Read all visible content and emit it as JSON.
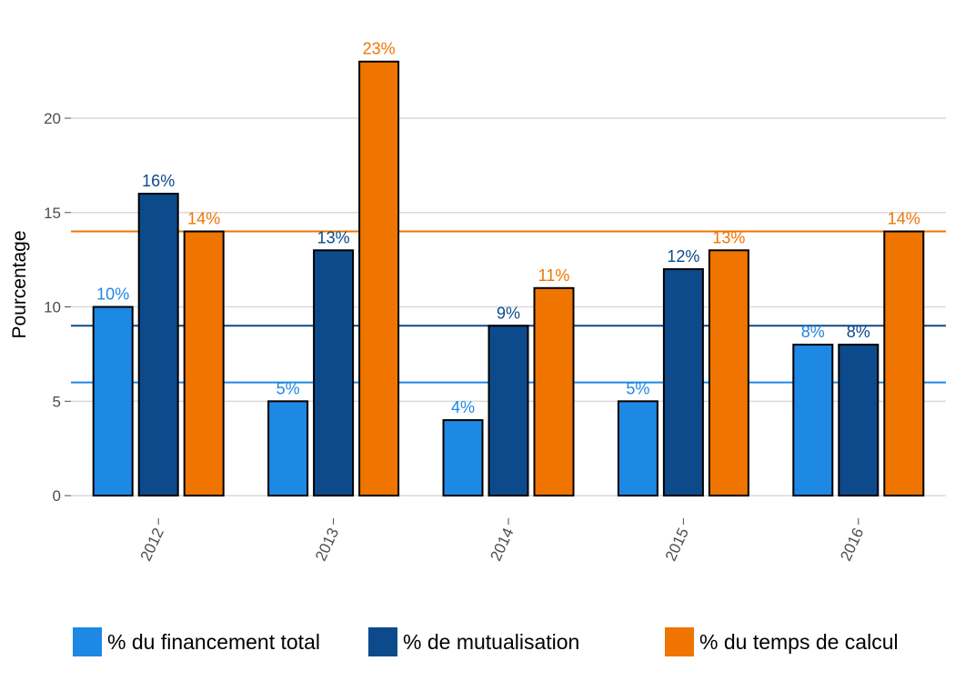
{
  "chart_data": {
    "type": "bar",
    "title": "",
    "xlabel": "",
    "ylabel": "Pourcentage",
    "categories": [
      "2012",
      "2013",
      "2014",
      "2015",
      "2016"
    ],
    "ylim": [
      -1.2,
      25.3
    ],
    "yticks": [
      0,
      5,
      10,
      15,
      20
    ],
    "grid": true,
    "legend_position": "bottom",
    "series": [
      {
        "name": "% du financement total",
        "color": "#1e88e5",
        "values": [
          10,
          5,
          4,
          5,
          8
        ],
        "labels": [
          "10%",
          "5%",
          "4%",
          "5%",
          "8%"
        ]
      },
      {
        "name": "% de mutualisation",
        "color": "#0d4a8c",
        "values": [
          16,
          13,
          9,
          12,
          8
        ],
        "labels": [
          "16%",
          "13%",
          "9%",
          "12%",
          "8%"
        ]
      },
      {
        "name": "% du temps de calcul",
        "color": "#ef7400",
        "values": [
          14,
          23,
          11,
          13,
          14
        ],
        "labels": [
          "14%",
          "23%",
          "11%",
          "13%",
          "14%"
        ]
      }
    ],
    "reference_lines": [
      {
        "value": 6,
        "color": "#1e88e5"
      },
      {
        "value": 9,
        "color": "#0d4a8c"
      },
      {
        "value": 14,
        "color": "#ef7400"
      }
    ]
  }
}
